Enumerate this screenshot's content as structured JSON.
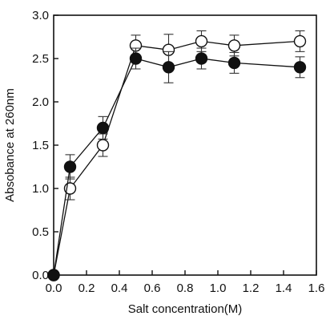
{
  "chart_data": {
    "type": "scatter",
    "xlabel": "Salt concentration(M)",
    "ylabel": "Absobance at 260nm",
    "xlim": [
      0.0,
      1.6
    ],
    "ylim": [
      0.0,
      3.0
    ],
    "x_ticks": [
      "0.0",
      "0.2",
      "0.4",
      "0.6",
      "0.8",
      "1.0",
      "1.2",
      "1.4",
      "1.6"
    ],
    "y_ticks": [
      "0.0",
      "0.5",
      "1.0",
      "1.5",
      "2.0",
      "2.5",
      "3.0"
    ],
    "grid": false,
    "series": [
      {
        "marker": "open-circle",
        "points": [
          {
            "x": 0.0,
            "y": 0.0,
            "err": 0.0
          },
          {
            "x": 0.1,
            "y": 1.0,
            "err": 0.13
          },
          {
            "x": 0.3,
            "y": 1.5,
            "err": 0.13
          },
          {
            "x": 0.5,
            "y": 2.65,
            "err": 0.12
          },
          {
            "x": 0.7,
            "y": 2.6,
            "err": 0.18
          },
          {
            "x": 0.9,
            "y": 2.7,
            "err": 0.12
          },
          {
            "x": 1.1,
            "y": 2.65,
            "err": 0.12
          },
          {
            "x": 1.5,
            "y": 2.7,
            "err": 0.12
          }
        ]
      },
      {
        "marker": "filled-circle",
        "points": [
          {
            "x": 0.0,
            "y": 0.0,
            "err": 0.0
          },
          {
            "x": 0.1,
            "y": 1.25,
            "err": 0.14
          },
          {
            "x": 0.3,
            "y": 1.7,
            "err": 0.13
          },
          {
            "x": 0.5,
            "y": 2.5,
            "err": 0.12
          },
          {
            "x": 0.7,
            "y": 2.4,
            "err": 0.18
          },
          {
            "x": 0.9,
            "y": 2.5,
            "err": 0.12
          },
          {
            "x": 1.1,
            "y": 2.45,
            "err": 0.12
          },
          {
            "x": 1.5,
            "y": 2.4,
            "err": 0.12
          }
        ]
      }
    ]
  }
}
